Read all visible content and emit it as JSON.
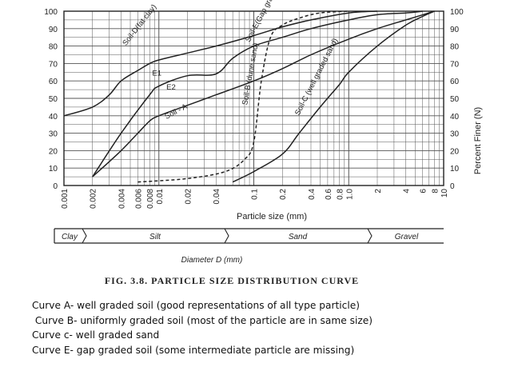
{
  "chart_data": {
    "type": "line",
    "title": "FIG. 3.8.  PARTICLE SIZE DISTRIBUTION CURVE",
    "xlabel": "Particle size (mm)",
    "ylabel": "Percent Finer (N)",
    "x_scale": "log",
    "xlim": [
      0.001,
      10
    ],
    "ylim": [
      0,
      100
    ],
    "grid": true,
    "x_ticks": [
      "0.001",
      "0.002",
      "0.004",
      "0.006",
      "0.008",
      "0.01",
      "0.02",
      "0.04",
      "0.1",
      "0.2",
      "0.4",
      "0.6",
      "0.8",
      "1.0",
      "2",
      "4",
      "6",
      "8",
      "10"
    ],
    "y_ticks": [
      "0",
      "10",
      "20",
      "30",
      "40",
      "50",
      "60",
      "70",
      "80",
      "90",
      "100"
    ],
    "series": [
      {
        "name": "Soil-D(fat clay)",
        "style": "solid",
        "x": [
          0.001,
          0.002,
          0.003,
          0.004,
          0.006,
          0.008,
          0.01,
          0.02,
          0.04,
          0.1,
          0.2,
          0.4,
          1.0,
          2
        ],
        "y": [
          40,
          45,
          52,
          60,
          66,
          70,
          72,
          76,
          80,
          86,
          91,
          95,
          99,
          100
        ]
      },
      {
        "name": "Soil-E(Gap graded)",
        "style": "solid",
        "x": [
          0.002,
          0.004,
          0.008,
          0.01,
          0.02,
          0.04,
          0.06,
          0.1,
          0.2,
          0.4,
          1.0,
          2,
          4,
          6
        ],
        "y": [
          5,
          30,
          52,
          57,
          63,
          64,
          73,
          80,
          85,
          90,
          95,
          98,
          99,
          100
        ]
      },
      {
        "name": "Soil - A",
        "style": "solid",
        "x": [
          0.002,
          0.004,
          0.006,
          0.008,
          0.01,
          0.02,
          0.04,
          0.1,
          0.2,
          0.4,
          1.0,
          2,
          4,
          8
        ],
        "y": [
          5,
          20,
          30,
          37,
          40,
          46,
          52,
          60,
          67,
          75,
          84,
          90,
          95,
          100
        ]
      },
      {
        "name": "Soil-B (dune sand)",
        "style": "dashed",
        "x": [
          0.006,
          0.02,
          0.05,
          0.08,
          0.1,
          0.12,
          0.15,
          0.2,
          0.3,
          0.5,
          1.0
        ],
        "y": [
          2,
          4,
          8,
          15,
          25,
          60,
          85,
          92,
          96,
          99,
          100
        ]
      },
      {
        "name": "Soil-C (well graded sand)",
        "style": "solid",
        "x": [
          0.06,
          0.1,
          0.2,
          0.3,
          0.5,
          0.8,
          1.0,
          2,
          4,
          6,
          8
        ],
        "y": [
          2,
          8,
          18,
          30,
          45,
          58,
          65,
          80,
          92,
          97,
          100
        ]
      }
    ],
    "annotations": [
      "E1",
      "E2"
    ],
    "diameter_axis": {
      "label": "Diameter D (mm)",
      "bands": [
        "Clay",
        "Silt",
        "Sand",
        "Gravel"
      ]
    }
  },
  "notes": [
    "Curve A- well graded soil (good representations of all type particle)",
    " Curve B- uniformly graded soil (most of the particle are in same size)",
    "Curve c- well graded sand",
    "Curve E- gap graded soil (some intermediate particle are missing)"
  ],
  "colors": {
    "ink": "#222222",
    "grid": "#555555",
    "background": "#ffffff"
  }
}
